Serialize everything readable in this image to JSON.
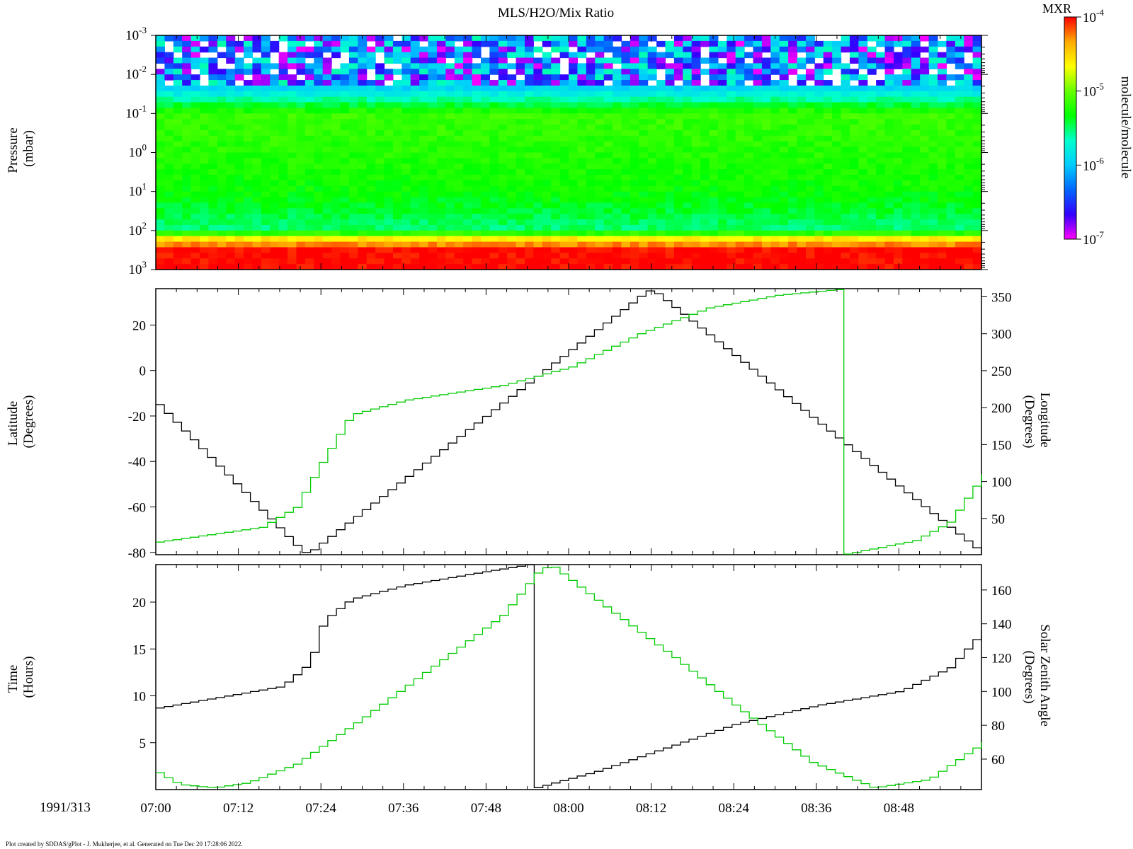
{
  "chart_data": [
    {
      "type": "heatmap",
      "title": "MLS/H2O/Mix Ratio",
      "ylabel": [
        "Pressure",
        "(mbar)"
      ],
      "y_scale": "log",
      "y_reversed": true,
      "ylim": [
        1000,
        0.001
      ],
      "y_ticks": [
        {
          "base": "10",
          "exp": "-3",
          "value": 0.001
        },
        {
          "base": "10",
          "exp": "-2",
          "value": 0.01
        },
        {
          "base": "10",
          "exp": "-1",
          "value": 0.1
        },
        {
          "base": "10",
          "exp": "0",
          "value": 1
        },
        {
          "base": "10",
          "exp": "1",
          "value": 10
        },
        {
          "base": "10",
          "exp": "2",
          "value": 100
        },
        {
          "base": "10",
          "exp": "3",
          "value": 1000
        }
      ],
      "colorbar": {
        "label": "MXR",
        "unit": "molecule/molecule",
        "scale": "log",
        "range": [
          1e-07,
          0.0001
        ],
        "ticks": [
          {
            "base": "10",
            "exp": "-4",
            "value": 0.0001
          },
          {
            "base": "10",
            "exp": "-5",
            "value": 1e-05
          },
          {
            "base": "10",
            "exp": "-6",
            "value": 1e-06
          },
          {
            "base": "10",
            "exp": "-7",
            "value": 1e-07
          }
        ],
        "colors": [
          "#ff00ff",
          "#3300ff",
          "#0066ff",
          "#00ccff",
          "#00ffcc",
          "#00ff00",
          "#66ff00",
          "#ffff00",
          "#ffaa00",
          "#ff0000"
        ]
      },
      "profile": [
        {
          "p": 0.001,
          "mxr": "sparse 1e-7 to 2e-6"
        },
        {
          "p": 0.02,
          "mxr": 1e-06
        },
        {
          "p": 0.1,
          "mxr": 7e-06
        },
        {
          "p": 1,
          "mxr": 6e-06
        },
        {
          "p": 10,
          "mxr": 5e-06
        },
        {
          "p": 100,
          "mxr": 3e-06
        },
        {
          "p": 150,
          "mxr": 2e-05
        },
        {
          "p": 300,
          "mxr": 0.0001
        }
      ]
    },
    {
      "type": "line",
      "step": true,
      "ylabel": [
        "Latitude",
        "(Degrees)"
      ],
      "ylim": [
        -81,
        36
      ],
      "y_ticks": [
        "20",
        "0",
        "-20",
        "-40",
        "-60",
        "-80"
      ],
      "y2label": [
        "Longitude",
        "(Degrees)"
      ],
      "y2lim": [
        1,
        361
      ],
      "y2_ticks": [
        "350",
        "300",
        "250",
        "200",
        "150",
        "100",
        "50"
      ],
      "series": [
        {
          "axis": "left",
          "color": "#000000",
          "x": [
            "07:00",
            "07:21",
            "07:22",
            "08:11",
            "08:12",
            "09:00"
          ],
          "y": [
            -15,
            -80,
            -80,
            35,
            35,
            -81
          ]
        },
        {
          "axis": "right",
          "color": "#00cc00",
          "x": [
            "07:00",
            "07:15",
            "07:20",
            "07:24",
            "07:28",
            "07:36",
            "07:50",
            "08:00",
            "08:10",
            "08:20",
            "08:30",
            "08:39",
            "08:39",
            "08:50",
            "08:55",
            "09:00"
          ],
          "y": [
            18,
            38,
            65,
            130,
            190,
            210,
            230,
            255,
            300,
            335,
            352,
            360,
            0,
            20,
            45,
            110
          ]
        }
      ]
    },
    {
      "type": "line",
      "step": true,
      "ylabel": [
        "Time",
        "(Hours)"
      ],
      "ylim": [
        0,
        24
      ],
      "y_ticks": [
        "20",
        "15",
        "10",
        "5"
      ],
      "y2label": [
        "Solar Zenith Angle",
        "(Degrees)"
      ],
      "y2lim": [
        42,
        175
      ],
      "y2_ticks": [
        "160",
        "140",
        "120",
        "100",
        "80",
        "60"
      ],
      "series": [
        {
          "axis": "left",
          "color": "#000000",
          "x": [
            "07:00",
            "07:18",
            "07:22",
            "07:24",
            "07:28",
            "07:36",
            "07:48",
            "07:54",
            "07:54",
            "08:04",
            "08:24",
            "08:36",
            "08:48",
            "08:55",
            "09:00"
          ],
          "y": [
            8.7,
            11,
            13.5,
            18,
            20.3,
            21.8,
            23.3,
            24,
            0,
            2,
            7,
            9,
            10.5,
            13,
            17
          ]
        },
        {
          "axis": "right",
          "color": "#00cc00",
          "x": [
            "07:00",
            "07:03",
            "07:08",
            "07:13",
            "07:20",
            "07:30",
            "07:40",
            "07:50",
            "07:55",
            "07:57",
            "08:05",
            "08:15",
            "08:25",
            "08:35",
            "08:44",
            "08:52",
            "09:00"
          ],
          "y": [
            52,
            45,
            43,
            46,
            57,
            85,
            115,
            145,
            170,
            175,
            150,
            120,
            88,
            58,
            43,
            48,
            70
          ]
        }
      ]
    }
  ],
  "x_axis": {
    "date": "1991/313",
    "start": "07:00",
    "end": "09:00",
    "tick_labels": [
      "07:00",
      "07:12",
      "07:24",
      "07:36",
      "07:48",
      "08:00",
      "08:12",
      "08:24",
      "08:36",
      "08:48"
    ]
  },
  "footer": "Plot created by SDDAS/gPlot - J. Mukherjee, et al.  Generated on Tue Dec 20 17:28:06 2022."
}
